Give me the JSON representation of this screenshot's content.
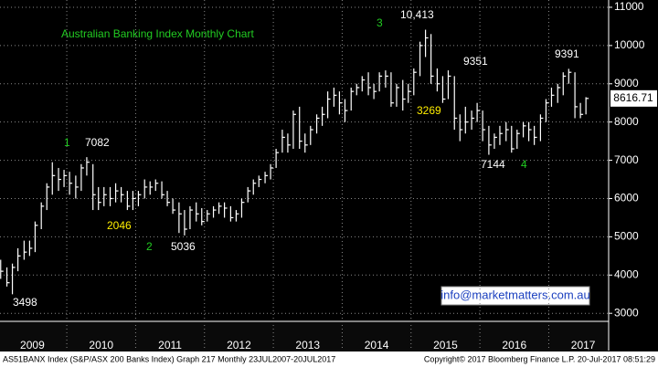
{
  "chart_data": {
    "type": "ohlc",
    "title": "Australian Banking Index Monthly Chart",
    "color": "#ffffff",
    "x": [
      2009.04,
      2009.13,
      2009.21,
      2009.29,
      2009.38,
      2009.46,
      2009.54,
      2009.63,
      2009.71,
      2009.79,
      2009.88,
      2009.96,
      2010.04,
      2010.13,
      2010.21,
      2010.29,
      2010.38,
      2010.46,
      2010.54,
      2010.63,
      2010.71,
      2010.79,
      2010.88,
      2010.96,
      2011.04,
      2011.13,
      2011.21,
      2011.29,
      2011.38,
      2011.46,
      2011.54,
      2011.63,
      2011.71,
      2011.79,
      2011.88,
      2011.96,
      2012.04,
      2012.13,
      2012.21,
      2012.29,
      2012.38,
      2012.46,
      2012.54,
      2012.63,
      2012.71,
      2012.79,
      2012.88,
      2012.96,
      2013.04,
      2013.13,
      2013.21,
      2013.29,
      2013.38,
      2013.46,
      2013.54,
      2013.63,
      2013.71,
      2013.79,
      2013.88,
      2013.96,
      2014.04,
      2014.13,
      2014.21,
      2014.29,
      2014.38,
      2014.46,
      2014.54,
      2014.63,
      2014.71,
      2014.79,
      2014.88,
      2014.96,
      2015.04,
      2015.13,
      2015.21,
      2015.29,
      2015.38,
      2015.46,
      2015.54,
      2015.63,
      2015.71,
      2015.79,
      2015.88,
      2015.96,
      2016.04,
      2016.13,
      2016.21,
      2016.29,
      2016.38,
      2016.46,
      2016.54,
      2016.63,
      2016.71,
      2016.79,
      2016.88,
      2016.96,
      2017.04,
      2017.13,
      2017.21,
      2017.29,
      2017.38,
      2017.46,
      2017.54
    ],
    "high": [
      4400,
      4200,
      4300,
      4700,
      4900,
      4900,
      5400,
      5900,
      6400,
      6950,
      6800,
      6750,
      6700,
      6600,
      6900,
      7082,
      6900,
      6300,
      6300,
      6300,
      6400,
      6300,
      6200,
      6200,
      6200,
      6500,
      6450,
      6500,
      6450,
      6200,
      6000,
      5900,
      5700,
      5800,
      5900,
      5750,
      5700,
      5800,
      5900,
      5900,
      5800,
      5700,
      6000,
      6300,
      6500,
      6600,
      6700,
      6900,
      7300,
      7800,
      7700,
      8300,
      8400,
      7700,
      7900,
      8200,
      8400,
      8800,
      8900,
      8800,
      8600,
      8900,
      9000,
      9200,
      9300,
      9000,
      9300,
      9350,
      9300,
      9000,
      9100,
      9000,
      9400,
      10100,
      10413,
      10300,
      9400,
      9200,
      9351,
      9200,
      8200,
      8400,
      8300,
      8500,
      8300,
      7900,
      7700,
      7900,
      8000,
      7900,
      7800,
      8000,
      8000,
      7900,
      8200,
      8600,
      8900,
      9000,
      9300,
      9391,
      9300,
      8500,
      8650
    ],
    "low": [
      3900,
      3700,
      3498,
      4100,
      4400,
      4500,
      4600,
      5200,
      5700,
      6100,
      6200,
      6300,
      6100,
      6000,
      6200,
      6600,
      5700,
      5700,
      5800,
      5800,
      5900,
      5900,
      5700,
      5700,
      5800,
      6000,
      6100,
      6200,
      6000,
      5800,
      5600,
      5100,
      5036,
      5200,
      5400,
      5300,
      5400,
      5500,
      5600,
      5500,
      5400,
      5400,
      5500,
      5900,
      6100,
      6300,
      6400,
      6500,
      6800,
      7200,
      7200,
      7300,
      7300,
      7200,
      7400,
      7700,
      7900,
      8100,
      8400,
      8200,
      8000,
      8300,
      8700,
      8800,
      8700,
      8600,
      8800,
      8900,
      8400,
      8400,
      8300,
      8500,
      8700,
      9200,
      9700,
      9000,
      8800,
      8500,
      8600,
      7800,
      7500,
      7700,
      7800,
      8000,
      7500,
      7144,
      7300,
      7400,
      7500,
      7200,
      7300,
      7600,
      7500,
      7400,
      7500,
      8000,
      8400,
      8500,
      8700,
      9000,
      8100,
      8100,
      8200
    ],
    "close": [
      4100,
      3800,
      4200,
      4500,
      4600,
      4700,
      5300,
      5800,
      6300,
      6600,
      6500,
      6600,
      6400,
      6300,
      6800,
      6950,
      6100,
      5900,
      6100,
      6000,
      6200,
      6100,
      5800,
      6000,
      6100,
      6300,
      6300,
      6400,
      6100,
      5900,
      5700,
      5600,
      5200,
      5700,
      5600,
      5400,
      5600,
      5700,
      5800,
      5750,
      5500,
      5600,
      5900,
      6200,
      6400,
      6500,
      6600,
      6800,
      7200,
      7600,
      7400,
      8200,
      7500,
      7400,
      7800,
      8100,
      8200,
      8600,
      8700,
      8500,
      8300,
      8800,
      8900,
      9100,
      8900,
      8800,
      9200,
      9200,
      8500,
      8900,
      8600,
      8800,
      9300,
      10000,
      10200,
      9200,
      9000,
      8600,
      9200,
      8100,
      7800,
      8000,
      8100,
      8300,
      7800,
      7400,
      7600,
      7700,
      7800,
      7300,
      7700,
      7900,
      7800,
      7600,
      8100,
      8500,
      8700,
      8900,
      9200,
      9300,
      8400,
      8200,
      8616.71
    ],
    "xlim": [
      2009.03,
      2017.87
    ],
    "ylim": [
      2790,
      11190
    ],
    "xticks": [
      {
        "value": 2009.5,
        "label": "2009"
      },
      {
        "value": 2010.5,
        "label": "2010"
      },
      {
        "value": 2011.5,
        "label": "2011"
      },
      {
        "value": 2012.5,
        "label": "2012"
      },
      {
        "value": 2013.5,
        "label": "2013"
      },
      {
        "value": 2014.5,
        "label": "2014"
      },
      {
        "value": 2015.5,
        "label": "2015"
      },
      {
        "value": 2016.5,
        "label": "2016"
      },
      {
        "value": 2017.5,
        "label": "2017"
      }
    ],
    "xgrid": [
      2010,
      2011,
      2012,
      2013,
      2014,
      2015,
      2016,
      2017
    ],
    "yticks": [
      3000,
      4000,
      5000,
      6000,
      7000,
      8000,
      9000,
      10000,
      11000
    ],
    "grid": true,
    "annotations": [
      {
        "text": "1",
        "color": "#22cc22"
      },
      {
        "text": "7082",
        "color": "#ffffff"
      },
      {
        "text": "2046",
        "color": "#ffee00"
      },
      {
        "text": "2",
        "color": "#22cc22"
      },
      {
        "text": "5036",
        "color": "#ffffff"
      },
      {
        "text": "3498",
        "color": "#ffffff"
      },
      {
        "text": "3",
        "color": "#22cc22"
      },
      {
        "text": "10,413",
        "color": "#ffffff"
      },
      {
        "text": "9351",
        "color": "#ffffff"
      },
      {
        "text": "3269",
        "color": "#ffee00"
      },
      {
        "text": "9391",
        "color": "#ffffff"
      },
      {
        "text": "7144",
        "color": "#ffffff"
      },
      {
        "text": "4",
        "color": "#22cc22"
      }
    ]
  },
  "contact": "info@marketmatters.com.au",
  "footer": {
    "left": "AS51BANX Index (S&P/ASX 200 Banks Index) Graph 217  Monthly 23JUL2007-20JUL2017",
    "right": "Copyright© 2017 Bloomberg Finance L.P.     20-Jul-2017 08:51:29"
  }
}
